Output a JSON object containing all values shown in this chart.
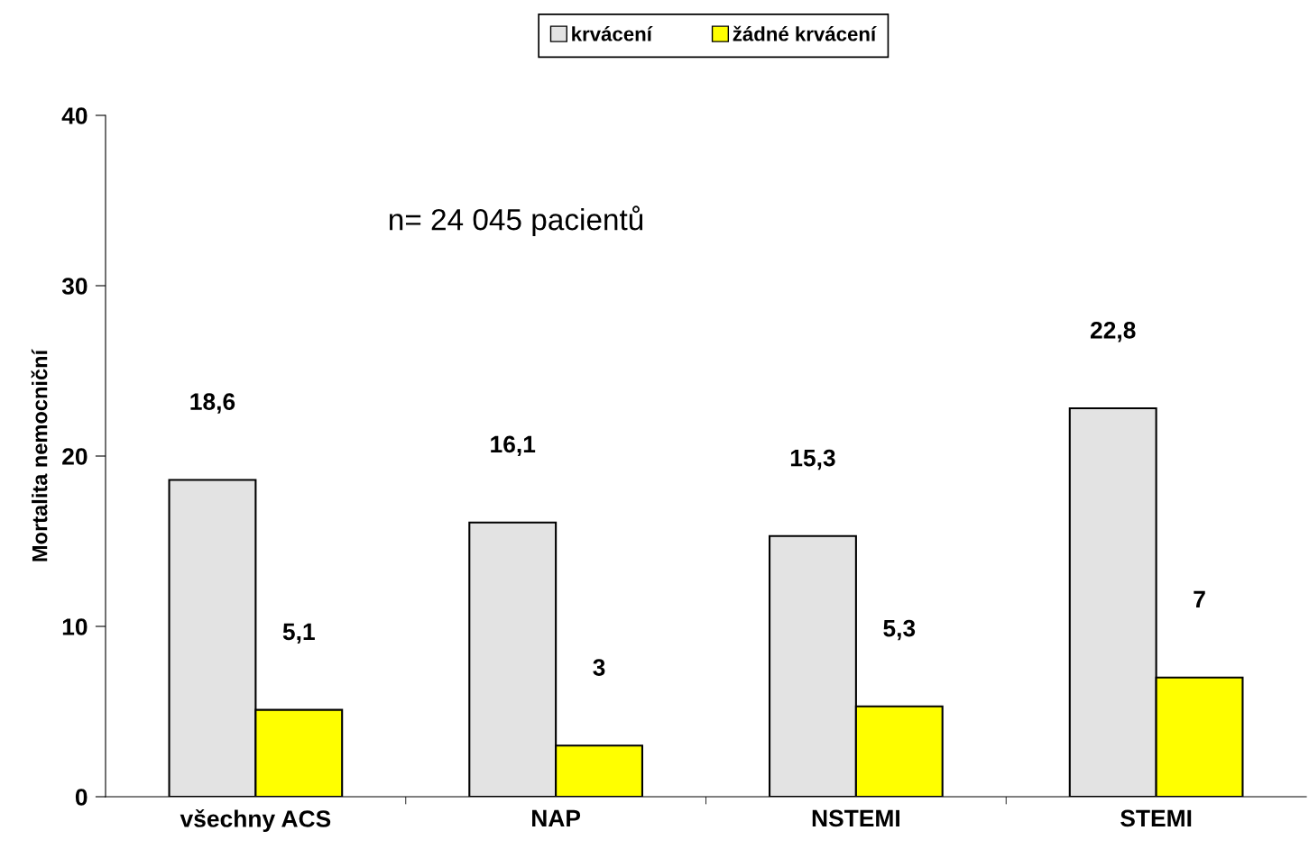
{
  "chart_data": {
    "type": "bar",
    "ylabel": "Mortalita nemocniční",
    "categories": [
      "všechny ACS",
      "NAP",
      "NSTEMI",
      "STEMI"
    ],
    "series": [
      {
        "name": "krvácení",
        "color": "#e3e3e3",
        "values": [
          18.6,
          16.1,
          15.3,
          22.8
        ],
        "value_labels": [
          "18,6",
          "16,1",
          "15,3",
          "22,8"
        ]
      },
      {
        "name": "žádné krvácení",
        "color": "#ffff00",
        "values": [
          5.1,
          3,
          5.3,
          7
        ],
        "value_labels": [
          "5,1",
          "3",
          "5,3",
          "7"
        ]
      }
    ],
    "ylim": [
      0,
      40
    ],
    "yticks": [
      0,
      10,
      20,
      30,
      40
    ],
    "grid": false,
    "legend": "top",
    "annotations": [
      "n= 24 045 pacientů"
    ]
  }
}
